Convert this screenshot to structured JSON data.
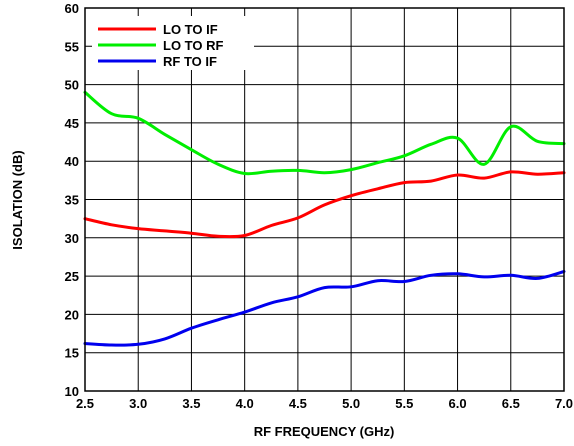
{
  "chart_data": {
    "type": "line",
    "title": "",
    "xlabel": "RF FREQUENCY (GHz)",
    "ylabel": "ISOLATION (dB)",
    "xlim": [
      2.5,
      7.0
    ],
    "ylim": [
      10,
      60
    ],
    "x_ticks": [
      "2.5",
      "3.0",
      "3.5",
      "4.0",
      "4.5",
      "5.0",
      "5.5",
      "6.0",
      "6.5",
      "7.0"
    ],
    "y_ticks": [
      "10",
      "15",
      "20",
      "25",
      "30",
      "35",
      "40",
      "45",
      "50",
      "55",
      "60"
    ],
    "grid": true,
    "legend_position": "top-left",
    "series": [
      {
        "name": "LO TO IF",
        "color": "#ff0000",
        "points": [
          [
            2.5,
            32.5
          ],
          [
            2.75,
            31.7
          ],
          [
            3.0,
            31.2
          ],
          [
            3.25,
            30.9
          ],
          [
            3.5,
            30.6
          ],
          [
            3.75,
            30.2
          ],
          [
            4.0,
            30.3
          ],
          [
            4.25,
            31.6
          ],
          [
            4.5,
            32.6
          ],
          [
            4.75,
            34.3
          ],
          [
            5.0,
            35.5
          ],
          [
            5.25,
            36.4
          ],
          [
            5.5,
            37.2
          ],
          [
            5.75,
            37.4
          ],
          [
            6.0,
            38.2
          ],
          [
            6.25,
            37.8
          ],
          [
            6.5,
            38.6
          ],
          [
            6.75,
            38.3
          ],
          [
            7.0,
            38.5
          ]
        ]
      },
      {
        "name": "LO TO RF",
        "color": "#00ee00",
        "points": [
          [
            2.5,
            49.0
          ],
          [
            2.75,
            46.2
          ],
          [
            3.0,
            45.6
          ],
          [
            3.25,
            43.5
          ],
          [
            3.5,
            41.5
          ],
          [
            3.75,
            39.6
          ],
          [
            4.0,
            38.4
          ],
          [
            4.25,
            38.7
          ],
          [
            4.5,
            38.8
          ],
          [
            4.75,
            38.5
          ],
          [
            5.0,
            38.9
          ],
          [
            5.25,
            39.8
          ],
          [
            5.5,
            40.7
          ],
          [
            5.75,
            42.2
          ],
          [
            6.0,
            43.0
          ],
          [
            6.25,
            39.6
          ],
          [
            6.5,
            44.5
          ],
          [
            6.75,
            42.6
          ],
          [
            7.0,
            42.3
          ]
        ]
      },
      {
        "name": "RF TO IF",
        "color": "#0000ee",
        "points": [
          [
            2.5,
            16.2
          ],
          [
            2.75,
            16.0
          ],
          [
            3.0,
            16.1
          ],
          [
            3.25,
            16.8
          ],
          [
            3.5,
            18.2
          ],
          [
            3.75,
            19.3
          ],
          [
            4.0,
            20.3
          ],
          [
            4.25,
            21.5
          ],
          [
            4.5,
            22.3
          ],
          [
            4.75,
            23.5
          ],
          [
            5.0,
            23.6
          ],
          [
            5.25,
            24.4
          ],
          [
            5.5,
            24.3
          ],
          [
            5.75,
            25.1
          ],
          [
            6.0,
            25.3
          ],
          [
            6.25,
            24.9
          ],
          [
            6.5,
            25.1
          ],
          [
            6.75,
            24.7
          ],
          [
            7.0,
            25.6
          ]
        ]
      }
    ]
  }
}
